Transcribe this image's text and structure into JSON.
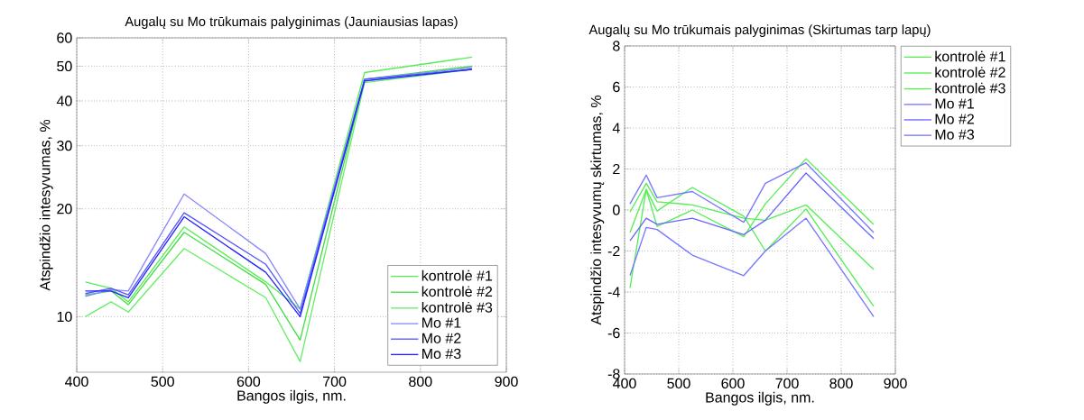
{
  "chart_data": [
    {
      "type": "line",
      "title": "Augalų su Mo  trūkumais palyginimas (Jauniausias lapas)",
      "xlabel": "Bangos ilgis, nm.",
      "ylabel": "Atspindžio intesyvumas, %",
      "log": "y",
      "grid": true,
      "legend": "bottom right",
      "marker": "none",
      "x": [
        410,
        440,
        460,
        525,
        620,
        660,
        735,
        860
      ],
      "xlim": [
        400,
        900
      ],
      "xticks": [
        400,
        500,
        600,
        700,
        800,
        900
      ],
      "ylim": [
        7,
        60
      ],
      "yticks": [
        10,
        20,
        30,
        40,
        50,
        60
      ],
      "series": [
        {
          "name": "kontrolė #1",
          "color": "#55ee55",
          "values": [
            12.5,
            12,
            11,
            17.8,
            12.5,
            10.5,
            48,
            53
          ]
        },
        {
          "name": "kontrolė #2",
          "color": "#44dd44",
          "values": [
            11.5,
            11.8,
            10.8,
            17.2,
            12.3,
            8.6,
            46,
            50
          ]
        },
        {
          "name": "kontrolė #3",
          "color": "#66ee66",
          "values": [
            10,
            11,
            10.3,
            15.5,
            11.3,
            7.5,
            45,
            49
          ]
        },
        {
          "name": "Mo #1",
          "color": "#8888ff",
          "values": [
            11.4,
            11.9,
            11.8,
            22,
            15,
            10.5,
            46,
            49.5
          ]
        },
        {
          "name": "Mo #2",
          "color": "#5555ff",
          "values": [
            11.6,
            12,
            11.5,
            19.5,
            14,
            10.2,
            46,
            49
          ]
        },
        {
          "name": "Mo #3",
          "color": "#2222ff",
          "values": [
            11.8,
            11.8,
            11.3,
            19,
            13.3,
            10,
            45.5,
            49
          ]
        }
      ]
    },
    {
      "type": "line",
      "title": "Augalų su Mo  trūkumais palyginimas (Skirtumas tarp lapų)",
      "xlabel": "Bangos ilgis, nm.",
      "ylabel": "Atspindžio intesyvumų skirtumas, %",
      "grid": true,
      "legend": "top right",
      "marker": "none",
      "x": [
        410,
        440,
        460,
        525,
        620,
        660,
        735,
        860
      ],
      "xlim": [
        400,
        900
      ],
      "xticks": [
        400,
        500,
        600,
        700,
        800,
        900
      ],
      "ylim": [
        -8,
        8
      ],
      "yticks": [
        -8,
        -6,
        -4,
        -2,
        0,
        2,
        4,
        6,
        8
      ],
      "series": [
        {
          "name": "kontrolė #1",
          "color": "#55ee55",
          "values": [
            -0.1,
            1.3,
            0.4,
            0.25,
            -0.4,
            -0.5,
            0.25,
            -2.9
          ]
        },
        {
          "name": "kontrolė #2",
          "color": "#55ee55",
          "values": [
            -1.1,
            1.0,
            -0.05,
            1.1,
            -0.3,
            -2.0,
            0.05,
            -4.7
          ]
        },
        {
          "name": "kontrolė #3",
          "color": "#55ee55",
          "values": [
            -3.8,
            1.0,
            -0.8,
            0.0,
            -1.3,
            0.3,
            2.5,
            -0.7
          ]
        },
        {
          "name": "Mo #1",
          "color": "#7777ff",
          "values": [
            0.3,
            1.7,
            0.6,
            0.9,
            -0.6,
            1.3,
            2.3,
            -1.1
          ]
        },
        {
          "name": "Mo #2",
          "color": "#6666ff",
          "values": [
            -1.5,
            -0.4,
            -0.7,
            -0.4,
            -1.2,
            -0.5,
            1.8,
            -1.4
          ]
        },
        {
          "name": "Mo #3",
          "color": "#7777ff",
          "values": [
            -3.2,
            -0.85,
            -0.95,
            -2.2,
            -3.2,
            -2.0,
            -0.4,
            -5.2
          ]
        }
      ]
    }
  ]
}
